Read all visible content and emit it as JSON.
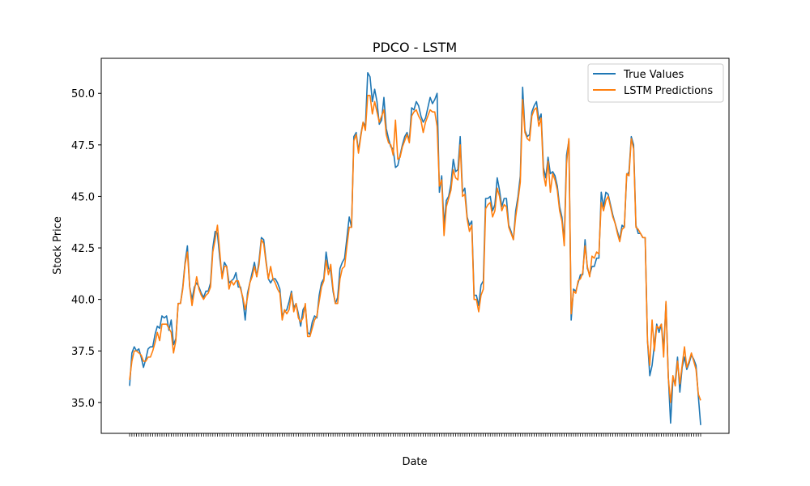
{
  "chart_data": {
    "type": "line",
    "title": "PDCO - LSTM",
    "xlabel": "Date",
    "ylabel": "Stock Price",
    "ylim": [
      33.5,
      51.7
    ],
    "yticks": [
      35.0,
      37.5,
      40.0,
      42.5,
      45.0,
      47.5,
      50.0
    ],
    "ytick_labels": [
      "35.0",
      "37.5",
      "40.0",
      "42.5",
      "45.0",
      "47.5",
      "50.0"
    ],
    "grid": false,
    "legend_position": "top-right",
    "series": [
      {
        "name": "True Values",
        "color": "#1f77b4",
        "values": [
          35.8,
          37.4,
          37.7,
          37.5,
          37.6,
          37.2,
          36.7,
          37.1,
          37.6,
          37.7,
          37.7,
          38.3,
          38.7,
          38.6,
          39.2,
          39.1,
          39.2,
          38.5,
          39.0,
          37.8,
          38.1,
          39.8,
          39.8,
          40.6,
          41.8,
          42.6,
          40.6,
          40.0,
          40.6,
          40.8,
          40.6,
          40.3,
          40.1,
          40.4,
          40.4,
          40.8,
          42.5,
          43.3,
          43.2,
          42.0,
          41.1,
          41.8,
          41.6,
          40.8,
          40.9,
          41.0,
          41.3,
          40.6,
          40.6,
          40.0,
          39.0,
          40.3,
          40.8,
          41.3,
          41.8,
          41.1,
          41.9,
          43.0,
          42.9,
          41.9,
          41.0,
          40.8,
          41.0,
          41.0,
          40.8,
          40.5,
          39.2,
          39.4,
          39.5,
          39.9,
          40.4,
          39.6,
          39.8,
          39.3,
          38.7,
          39.5,
          39.7,
          38.4,
          38.3,
          38.9,
          39.2,
          39.1,
          40.2,
          40.8,
          41.0,
          42.3,
          41.5,
          41.4,
          40.4,
          39.8,
          40.1,
          41.5,
          41.8,
          42.0,
          43.0,
          44.0,
          43.5,
          47.9,
          48.1,
          47.2,
          48.0,
          48.6,
          48.4,
          51.0,
          50.8,
          49.6,
          50.2,
          49.6,
          48.5,
          48.7,
          49.8,
          48.3,
          47.8,
          47.4,
          47.3,
          46.4,
          46.5,
          47.0,
          47.5,
          47.9,
          48.1,
          47.7,
          49.3,
          49.2,
          49.6,
          49.4,
          48.9,
          48.6,
          48.8,
          49.3,
          49.8,
          49.5,
          49.7,
          50.0,
          45.2,
          46.0,
          43.6,
          44.8,
          45.0,
          45.6,
          46.8,
          46.2,
          46.3,
          47.9,
          45.2,
          45.4,
          44.0,
          43.6,
          43.8,
          40.2,
          40.2,
          39.7,
          40.7,
          40.9,
          44.9,
          44.9,
          45.0,
          44.3,
          44.6,
          45.9,
          45.3,
          44.5,
          44.9,
          44.9,
          43.6,
          43.3,
          42.9,
          44.3,
          45.0,
          46.0,
          50.3,
          48.2,
          47.9,
          48.0,
          49.1,
          49.4,
          49.6,
          48.7,
          49.0,
          46.4,
          45.9,
          46.9,
          46.1,
          46.2,
          46.0,
          45.5,
          44.5,
          44.0,
          42.8,
          47.0,
          47.7,
          39.0,
          40.5,
          40.4,
          40.8,
          41.2,
          41.2,
          42.9,
          41.5,
          41.2,
          41.6,
          41.6,
          42.0,
          42.0,
          45.2,
          44.5,
          45.2,
          45.1,
          44.6,
          44.1,
          43.7,
          43.3,
          42.9,
          43.6,
          43.5,
          46.0,
          46.2,
          47.9,
          47.5,
          43.6,
          43.2,
          43.2,
          43.0,
          43.0,
          38.0,
          36.3,
          36.8,
          37.8,
          38.8,
          38.4,
          38.8,
          37.6,
          39.8,
          36.3,
          34.0,
          36.1,
          36.0,
          37.2,
          35.5,
          36.7,
          37.2,
          36.6,
          36.9,
          37.3,
          37.1,
          36.8,
          35.3,
          33.9
        ]
      },
      {
        "name": "LSTM Predictions",
        "color": "#ff7f0e",
        "values": [
          36.1,
          37.0,
          37.5,
          37.5,
          37.4,
          37.3,
          37.0,
          37.0,
          37.2,
          37.2,
          37.5,
          37.9,
          38.4,
          38.0,
          38.8,
          38.8,
          38.8,
          38.6,
          38.4,
          37.4,
          38.0,
          39.8,
          39.8,
          40.5,
          41.7,
          42.3,
          40.6,
          39.7,
          40.4,
          41.1,
          40.5,
          40.2,
          40.0,
          40.2,
          40.3,
          40.6,
          42.3,
          42.9,
          43.6,
          42.3,
          41.0,
          41.6,
          41.6,
          40.5,
          40.9,
          40.7,
          40.9,
          40.9,
          40.5,
          40.1,
          39.5,
          40.1,
          40.8,
          41.1,
          41.6,
          41.1,
          41.7,
          42.9,
          42.7,
          41.8,
          41.0,
          41.6,
          41.0,
          40.8,
          40.5,
          40.3,
          39.0,
          39.5,
          39.3,
          39.5,
          40.3,
          39.4,
          39.8,
          39.1,
          38.9,
          39.1,
          39.8,
          38.2,
          38.2,
          38.6,
          39.0,
          39.2,
          39.9,
          40.6,
          40.9,
          41.9,
          41.2,
          41.7,
          40.5,
          39.8,
          39.8,
          41.0,
          41.5,
          41.6,
          42.6,
          43.5,
          43.5,
          47.7,
          48.0,
          47.1,
          47.9,
          48.6,
          48.2,
          49.9,
          49.9,
          49.0,
          49.6,
          49.1,
          48.6,
          48.9,
          49.2,
          48.0,
          47.6,
          47.5,
          47.0,
          48.7,
          46.8,
          46.9,
          47.4,
          47.7,
          48.0,
          47.6,
          48.9,
          49.1,
          49.2,
          48.9,
          48.7,
          48.1,
          48.6,
          48.9,
          49.2,
          49.1,
          49.1,
          48.4,
          45.5,
          45.8,
          43.1,
          44.5,
          44.9,
          45.3,
          46.3,
          45.9,
          45.8,
          47.5,
          45.0,
          45.1,
          43.9,
          43.3,
          43.6,
          40.0,
          40.0,
          39.4,
          40.2,
          40.5,
          44.4,
          44.6,
          44.7,
          44.0,
          44.3,
          45.4,
          45.0,
          44.3,
          44.6,
          44.5,
          43.5,
          43.2,
          42.9,
          44.0,
          44.8,
          45.7,
          49.7,
          48.1,
          47.8,
          47.7,
          48.9,
          49.2,
          49.3,
          48.4,
          48.8,
          46.1,
          45.5,
          46.7,
          45.2,
          46.1,
          45.8,
          45.3,
          44.3,
          43.8,
          42.6,
          46.6,
          47.8,
          39.3,
          40.4,
          40.3,
          40.9,
          41.0,
          41.3,
          42.6,
          41.6,
          41.1,
          42.1,
          42.0,
          42.3,
          42.2,
          44.7,
          44.3,
          44.8,
          45.0,
          44.5,
          44.0,
          43.7,
          43.2,
          42.8,
          43.4,
          43.5,
          46.1,
          46.0,
          47.8,
          47.3,
          43.5,
          43.4,
          43.2,
          43.0,
          43.0,
          38.0,
          36.8,
          39.0,
          37.5,
          38.7,
          38.6,
          38.8,
          37.2,
          39.9,
          36.2,
          35.0,
          36.3,
          35.8,
          37.0,
          35.9,
          36.8,
          37.7,
          36.7,
          37.0,
          37.4,
          37.0,
          36.6,
          35.4,
          35.1
        ]
      }
    ]
  }
}
